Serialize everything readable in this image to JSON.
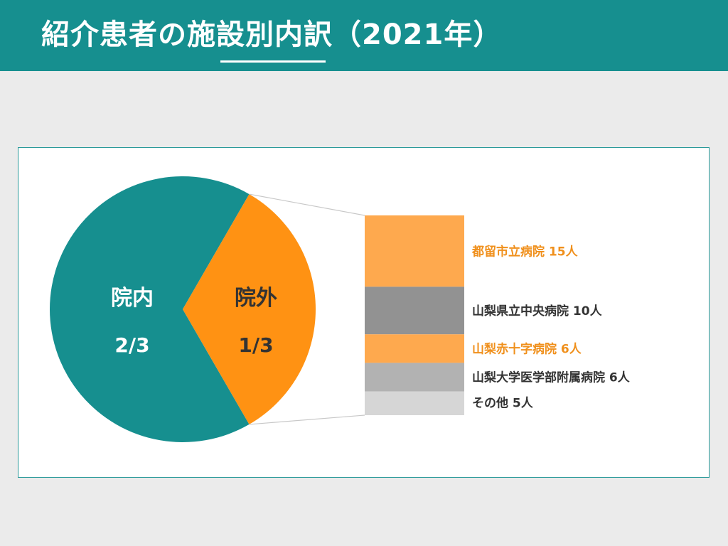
{
  "header": {
    "title": "紹介患者の施設別内訳（2021年）"
  },
  "colors": {
    "header_bg": "#168f8f",
    "inside": "#168f8f",
    "outside": "#ff9213",
    "orange_text": "#f0901c",
    "dark_text": "#333333"
  },
  "chart_data": {
    "type": "pie",
    "pie": {
      "slices": [
        {
          "label": "院内",
          "fraction_label": "2/3",
          "value": 0.6667
        },
        {
          "label": "院外",
          "fraction_label": "1/3",
          "value": 0.3333
        }
      ]
    },
    "breakdown_of": "院外",
    "breakdown": [
      {
        "label": "都留市立病院 15人",
        "value": 15
      },
      {
        "label": "山梨県立中央病院 10人",
        "value": 10
      },
      {
        "label": "山梨赤十字病院 6人",
        "value": 6
      },
      {
        "label": "山梨大学医学部附属病院 6人",
        "value": 6
      },
      {
        "label": "その他 5人",
        "value": 5
      }
    ]
  }
}
